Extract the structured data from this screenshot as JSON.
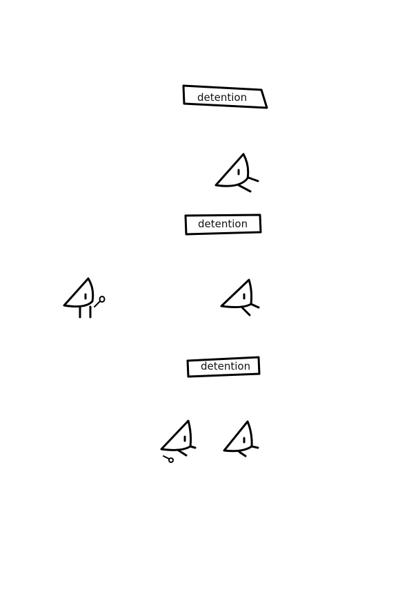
{
  "panels": [
    {
      "sign_label": "detention"
    },
    {
      "sign_label": "detention"
    },
    {
      "sign_label": "detention"
    }
  ],
  "colors": {
    "ink": "#000000",
    "background": "#ffffff"
  }
}
